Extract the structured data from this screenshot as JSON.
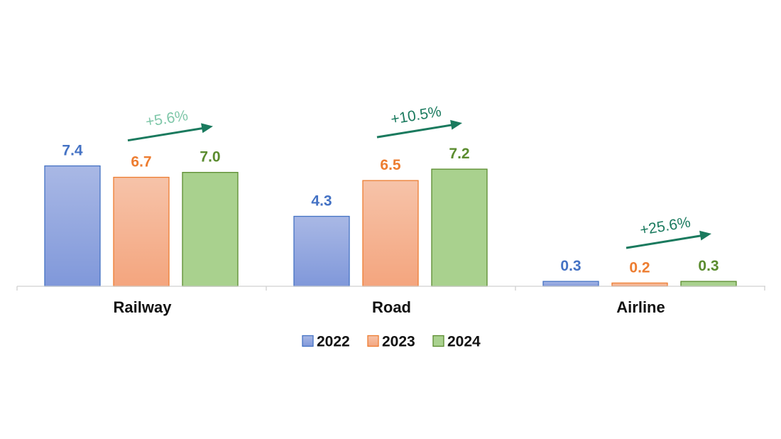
{
  "chart_data": {
    "type": "bar",
    "categories": [
      "Railway",
      "Road",
      "Airline"
    ],
    "series": [
      {
        "name": "2022",
        "values": [
          7.4,
          4.3,
          0.3
        ],
        "labels": [
          "7.4",
          "4.3",
          "0.3"
        ],
        "color": "#4472C4",
        "fill_top": "#A9B8E5",
        "fill_bottom": "#8098DA"
      },
      {
        "name": "2023",
        "values": [
          6.7,
          6.5,
          0.2
        ],
        "labels": [
          "6.7",
          "6.5",
          "0.2"
        ],
        "color": "#ED7D31",
        "fill_top": "#F6C3A9",
        "fill_bottom": "#F4A57E"
      },
      {
        "name": "2024",
        "values": [
          7.0,
          7.2,
          0.3
        ],
        "labels": [
          "7.0",
          "7.2",
          "0.3"
        ],
        "color": "#5B8C2F",
        "fill_top": "#A9D18E",
        "fill_bottom": "#A9D18E"
      }
    ],
    "annotations": [
      {
        "category": "Railway",
        "text": "+5.6%",
        "color": "#7FC7A9"
      },
      {
        "category": "Road",
        "text": "+10.5%",
        "color": "#1A7A5E"
      },
      {
        "category": "Airline",
        "text": "+25.6%",
        "color": "#1A7A5E"
      }
    ],
    "arrow_color": "#1A7A5E",
    "ylim": [
      0,
      8
    ],
    "grid": false,
    "legend_position": "bottom-center",
    "title": "",
    "xlabel": "",
    "ylabel": ""
  }
}
